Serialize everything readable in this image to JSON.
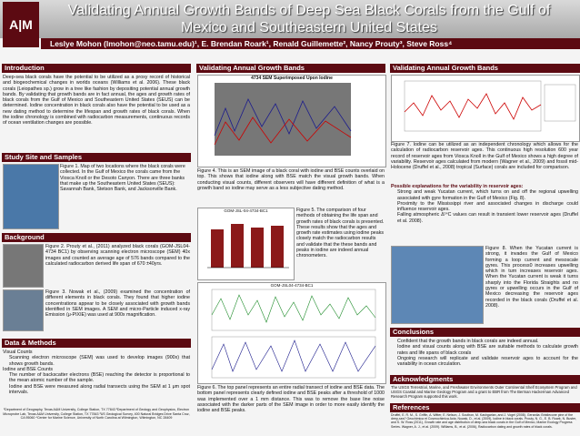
{
  "header": {
    "logo": "A|M",
    "title": "Validating Annual Growth Bands of Deep Sea Black Corals from the Gulf of Mexico and Southeastern United States",
    "authors": "Leslye  Mohon (lmohon@neo.tamu.edu)¹,  E. Brendan Roark¹, Renald Guillemette², Nancy Prouty³, Steve Ross⁴"
  },
  "introduction": {
    "heading": "Introduction",
    "text": "Deep-sea black corals have the potential to be utilized as a proxy record of historical and biogeochemical changes in worlds oceans (Williams et al. 2006). These black corals (Leiopathes sp.) grow in a tree like fashion by depositing potential annual growth bands. By validating that growth bands are in fact annual, the ages and growth rates of black corals from the Gulf of Mexico and Southeastern United States (SEUS) can be determined. Iodine concentration in black corals also have the potential to be used as a new dating method to determine the lifespan and growth rates of black corals. When the iodine chronology is combined with radiocarbon measurements, continuous records of ocean ventilation changes are possible."
  },
  "study_site": {
    "heading": "Study Site and Samples",
    "caption": "Figure 1. Map of two locations where the black corals were collected. In the Gulf of Mexico the corals came from the Viosca Knoll or the Desoto Canyon. There are three banks that make up the Southeastern United States (SEUS): Savannah Bank, Stetson Bank, and Jacksonville Bank."
  },
  "background": {
    "heading": "Background",
    "fig2": "Figure 2. Prouty et al., (2011) analyzed black corals (GOM-JSL04-4734 BC1) by observing scanning electron microscope (SEM) 40x images and counted an average age of 576 bands compared to the calculated radiocarbon derived life span of 670 ±40yrs.",
    "fig3": "Figure 3. Nowak et al., (2009) examined the concentration of different elements in black corals. They found that higher iodine concentrations appear to be closely associated with growth bands identified in SEM images. A SEM and micro-Particle induced x-ray Emission (μ-PIXIE) was used at 900x magnification."
  },
  "methods": {
    "heading": "Data & Methods",
    "sub1": "Visual Counts",
    "item1": "Scanning electron microscope (SEM) was used to develop images (900x) that shows growth bands.",
    "sub2": "Iodine and BSE Counts",
    "item2": "The number of backscatter electrons (BSE) reaching the detector is proportional to the mean atomic number of the sample.",
    "item3": "Iodine and BSE were measured along radial transects using the SEM at 1 μm spot intervals."
  },
  "affiliations": "¹Department of Geography, Texas A&M University, College Station, TX 77843 ²Department of Geology and Geophysics, Electron Microprobe Lab, Texas A&M University, College Station, TX 77843 ³US Geological Survey, 400 Natural Bridges Drive Santa Cruz, CA 95060 ⁴Center for Marine Science, University of North Carolina at Wilmington, Wilmington, NC 28409",
  "validating1": {
    "heading": "Validating Annual Growth Bands",
    "fig_title": "4734 SEM Superimposed Upon Iodine",
    "fig4": "Figure 4. This is an SEM image of a black coral with iodine and BSE counts overlaid on top. This shows that iodine along with BSE match the visual growth bands. When conducting visual counts, different observers will have different definition of what is a growth band so iodine may serve as a less subjective dating method.",
    "fig5_title": "GOM-JSL-04-4734-BC1",
    "fig5": "Figure 5. The comparison of four methods of obtaining the life span and growth rates of black corals is presented. These results show that the ages and growth rate estimates using iodine peaks closely match the radiocarbon results and validate that the these bands and peaks in iodine are indeed annual chronometers.",
    "fig6_title": "GOM-JSL04-4734-BC1",
    "fig6": "Figure 6. The top panel represents an entire radial transect of iodine and BSE data. The bottom panel represents clearly defined iodine and BSE peaks after a threshold of 1000 was implemented over a 1 mm distance. This was to remove the base line noise associated with the darker parts of the SEM image in order to more easily identify the iodine and BSE peaks."
  },
  "validating2": {
    "heading": "Validating Annual Growth Bands",
    "fig7": "Figure 7. Iodine can be utilized as an independent chronology which allows for the calculation of radiocarbon reservoir ages. This continuous high resolution 600 year record of reservoir ages from Viosca Knoll in the Gulf of Mexico shows a high degree of variability. Reservoir ages calculated from modern (Wagner et al., 2009) and fossil mid-Holocene (Druffel et al., 2008) tropical (Surface) corals are included for comparison.",
    "explain_heading": "Possible explanations for the variability in reservoir ages:",
    "explain": [
      "Strong and weak Yucatan current, which turns on and off the regional upwelling associated with gyre formation in the Gulf of Mexico (Fig. 8).",
      "Proximity to the Mississippi river and associated changes in discharge could influence reservoir ages.",
      "Falling atmospheric Δ¹⁴C values can result in transient lower reservoir ages (Druffel et al. 2008)."
    ],
    "fig8": "Figure 8. When the Yucatan current is strong, it invades the Gulf of Mexico forming a loop current and mesoscale gyres. This process0 increases upwelling which in turn increases reservoir ages. When the Yucatan current is weak it turns sharply into the Florida Straights and no gyres or upwelling occurs in the Gulf of Mexico decreasing the reservoir ages recorded in the black corals (Druffel et al. 2008)."
  },
  "conclusions": {
    "heading": "Conclusions",
    "items": [
      "Confident that the growth bands in black corals are indeed annual.",
      "Iodine and visual counts along with BSE are suitable methods to calculate growth rates and life spans of black corals",
      "Ongoing research will replicate and validate reservoir ages to account for the variability in ocean circulation."
    ]
  },
  "acknowledgments": {
    "heading": "Acknowledgments",
    "text": "The USGS Terrestrial, Marine, and Freshwater Environments Outer Continental Shelf Ecosystem Program and USGS Coastal and Marine Geology Program and a grant to EBR from The Berman Hackerman Advanced Research Program supported this work."
  },
  "references": {
    "heading": "References",
    "text": "Druffel, E. R. M., S. Griffin, A. Witter, E. Nelson, J. Southon, M. Kashgarian, and J. Vogel (2008). Gerardia: Bristlecone pine of the deep-sea? Geochimica et Cosmochimica Acta. Nowak, D., et al. (2009), Iodine in black corals. Prouty, N. G., E. B. Roark, N. Buster, and S. W. Ross (2011), Growth rate and age distribution of deep-sea black corals in the Gulf of Mexico, Marine Ecology Progress Series. Wagner, A. J., et al. (2009). Williams, B., et al. (2006), Radiocarbon dating and growth rates of black corals."
  }
}
